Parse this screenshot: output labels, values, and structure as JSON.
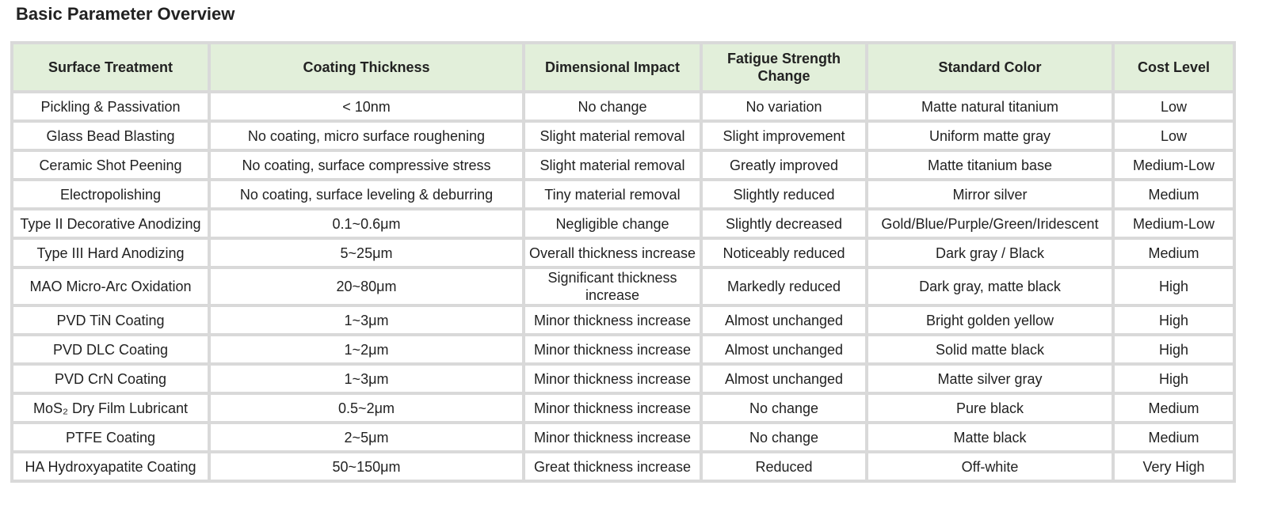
{
  "header": {
    "title": "Basic Parameter Overview"
  },
  "table": {
    "columns": [
      "Surface Treatment",
      "Coating Thickness",
      "Dimensional Impact",
      "Fatigue Strength Change",
      "Standard Color",
      "Cost Level"
    ],
    "rows": [
      [
        "Pickling & Passivation",
        "< 10nm",
        "No change",
        "No variation",
        "Matte natural titanium",
        "Low"
      ],
      [
        "Glass Bead Blasting",
        "No coating, micro surface roughening",
        "Slight material removal",
        "Slight improvement",
        "Uniform matte gray",
        "Low"
      ],
      [
        "Ceramic Shot Peening",
        "No coating, surface compressive stress",
        "Slight material removal",
        "Greatly improved",
        "Matte titanium base",
        "Medium-Low"
      ],
      [
        "Electropolishing",
        "No coating, surface leveling & deburring",
        "Tiny material removal",
        "Slightly reduced",
        "Mirror silver",
        "Medium"
      ],
      [
        "Type II Decorative Anodizing",
        "0.1~0.6μm",
        "Negligible change",
        "Slightly decreased",
        "Gold/Blue/Purple/Green/Iridescent",
        "Medium-Low"
      ],
      [
        "Type III Hard Anodizing",
        "5~25μm",
        "Overall thickness increase",
        "Noticeably reduced",
        "Dark gray / Black",
        "Medium"
      ],
      [
        "MAO Micro-Arc Oxidation",
        "20~80μm",
        "Significant thickness increase",
        "Markedly reduced",
        "Dark gray, matte black",
        "High"
      ],
      [
        "PVD TiN Coating",
        "1~3μm",
        "Minor thickness increase",
        "Almost unchanged",
        "Bright golden yellow",
        "High"
      ],
      [
        "PVD DLC Coating",
        "1~2μm",
        "Minor thickness increase",
        "Almost unchanged",
        "Solid matte black",
        "High"
      ],
      [
        "PVD CrN Coating",
        "1~3μm",
        "Minor thickness increase",
        "Almost unchanged",
        "Matte silver gray",
        "High"
      ],
      [
        "MoS₂ Dry Film Lubricant",
        "0.5~2μm",
        "Minor thickness increase",
        "No change",
        "Pure black",
        "Medium"
      ],
      [
        "PTFE Coating",
        "2~5μm",
        "Minor thickness increase",
        "No change",
        "Matte black",
        "Medium"
      ],
      [
        "HA Hydroxyapatite Coating",
        "50~150μm",
        "Great thickness increase",
        "Reduced",
        "Off-white",
        "Very High"
      ]
    ]
  }
}
